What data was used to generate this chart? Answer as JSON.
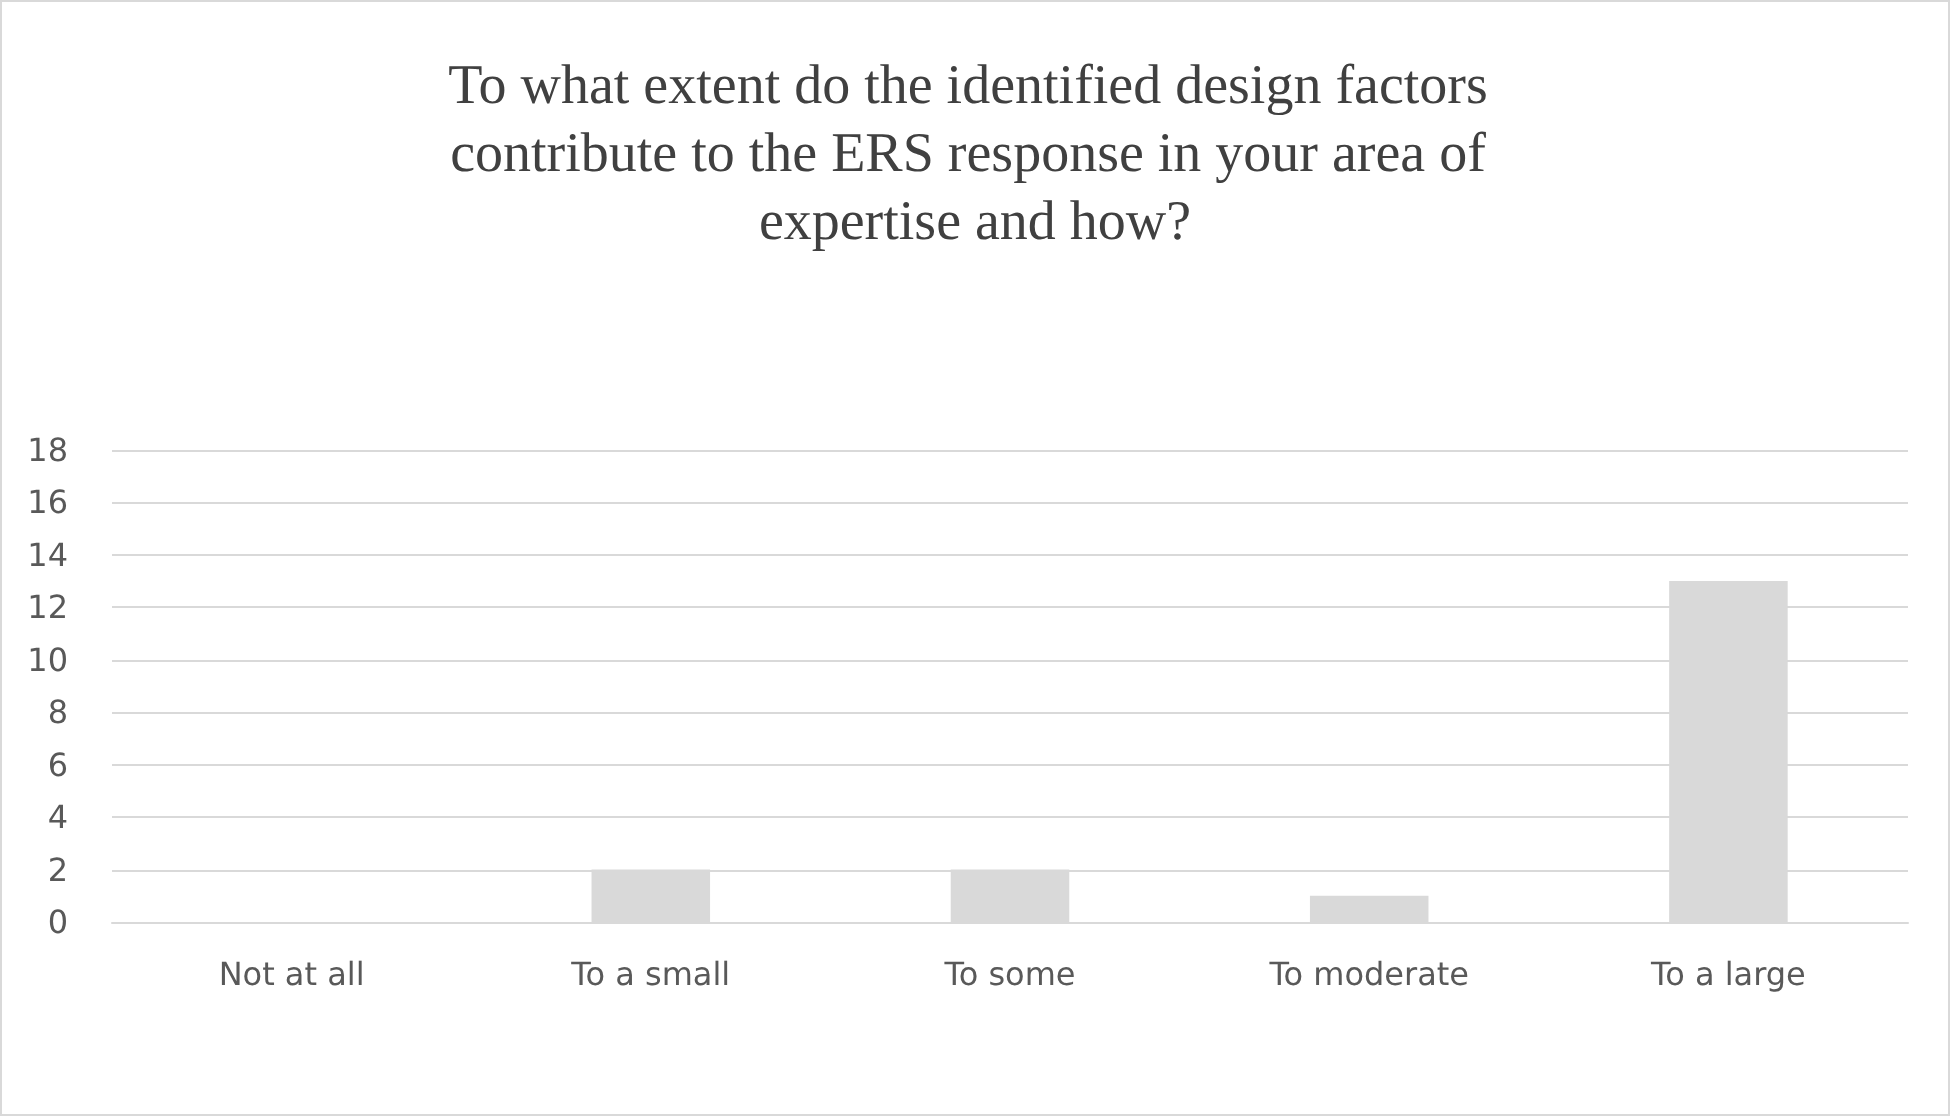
{
  "chart_data": {
    "type": "bar",
    "title": "To what extent do the identified design factors contribute to the ERS response in your area of expertise and how?",
    "categories": [
      "Not at all",
      "To a small",
      "To some",
      "To moderate",
      "To a large"
    ],
    "values": [
      0,
      2,
      2,
      1,
      13
    ],
    "color": "#d9d9d9",
    "ylim": [
      0,
      18
    ],
    "yticks": [
      0,
      2,
      4,
      6,
      8,
      10,
      12,
      14,
      16,
      18
    ],
    "grid": "y"
  }
}
